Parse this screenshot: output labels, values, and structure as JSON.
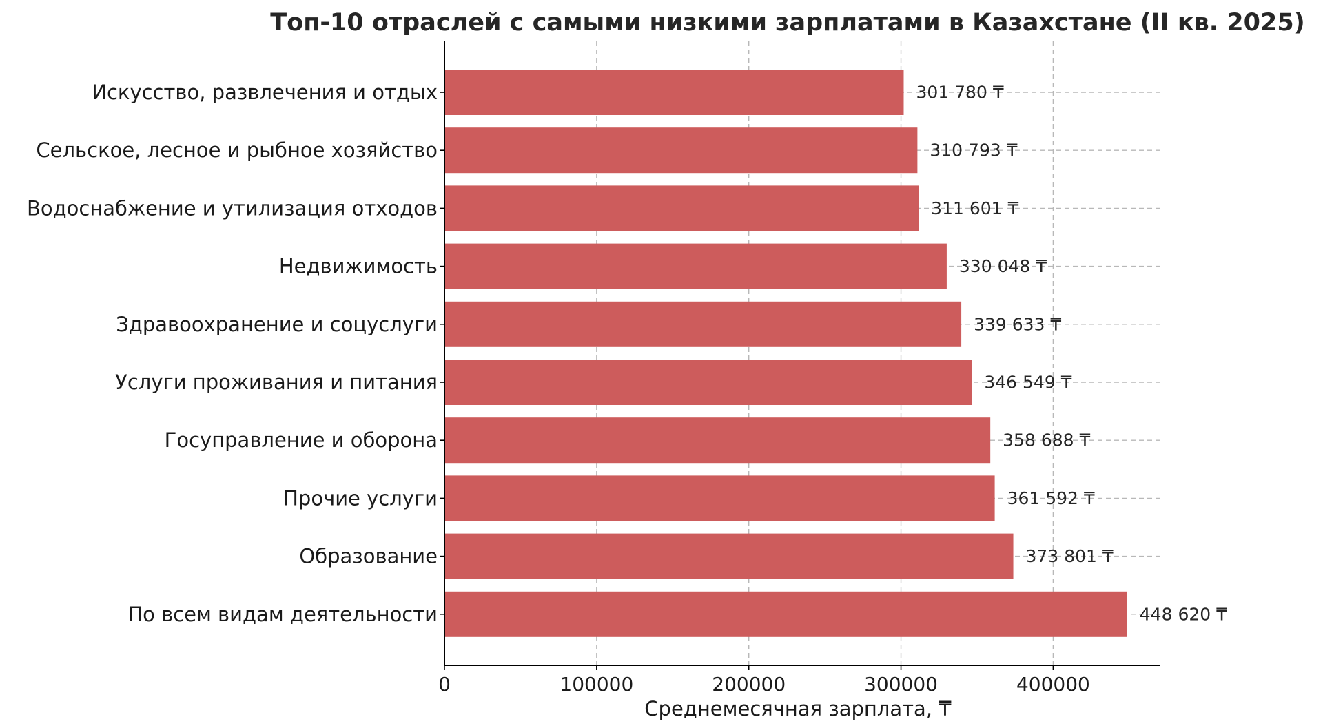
{
  "chart_data": {
    "type": "bar",
    "orientation": "horizontal",
    "title": "Топ-10 отраслей с самыми низкими зарплатами в Казахстане (II кв. 2025)",
    "xlabel": "Среднемесячная зарплата, ₸",
    "ylabel": "",
    "xlim": [
      0,
      470000
    ],
    "x_ticks": [
      0,
      100000,
      200000,
      300000,
      400000
    ],
    "x_tick_labels": [
      "0",
      "100000",
      "200000",
      "300000",
      "400000"
    ],
    "grid": "x-and-y, dashed",
    "bar_color": "#cd5c5c",
    "categories": [
      "Искусство, развлечения и отдых",
      "Сельское, лесное и рыбное хозяйство",
      "Водоснабжение и утилизация отходов",
      "Недвижимость",
      "Здравоохранение и соцуслуги",
      "Услуги проживания и питания",
      "Госуправление и оборона",
      "Прочие услуги",
      "Образование",
      "По всем видам деятельности"
    ],
    "values": [
      301780,
      310793,
      311601,
      330048,
      339633,
      346549,
      358688,
      361592,
      373801,
      448620
    ],
    "value_labels": [
      "301 780 ₸",
      "310 793 ₸",
      "311 601 ₸",
      "330 048 ₸",
      "339 633 ₸",
      "346 549 ₸",
      "358 688 ₸",
      "361 592 ₸",
      "373 801 ₸",
      "448 620 ₸"
    ]
  }
}
